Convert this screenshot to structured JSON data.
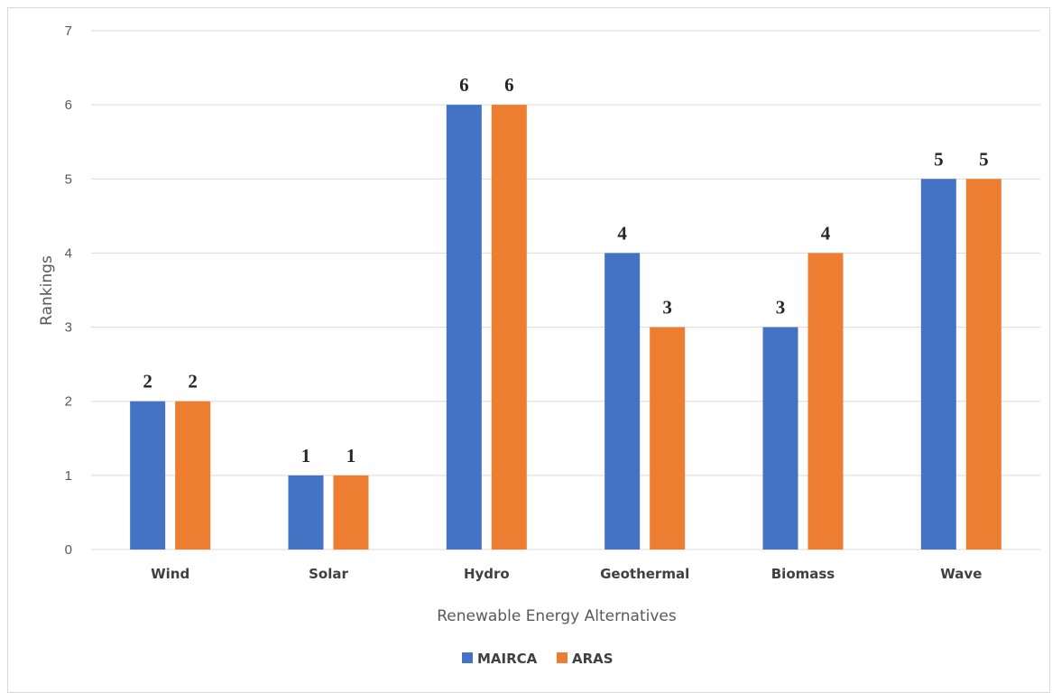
{
  "chart_data": {
    "type": "bar",
    "categories": [
      "Wind",
      "Solar",
      "Hydro",
      "Geothermal",
      "Biomass",
      "Wave"
    ],
    "series": [
      {
        "name": "MAIRCA",
        "values": [
          2,
          1,
          6,
          4,
          3,
          5
        ],
        "color": "#4472C4"
      },
      {
        "name": "ARAS",
        "values": [
          2,
          1,
          6,
          3,
          4,
          5
        ],
        "color": "#ED7D31"
      }
    ],
    "title": "",
    "xlabel": "Renewable Energy Alternatives",
    "ylabel": "Rankings",
    "ylim": [
      0,
      7
    ],
    "yticks": [
      "0",
      "1",
      "2",
      "3",
      "4",
      "5",
      "6",
      "7"
    ],
    "grid": true,
    "legend_position": "bottom",
    "data_labels": true,
    "gridline_color": "#d9d9d9"
  }
}
